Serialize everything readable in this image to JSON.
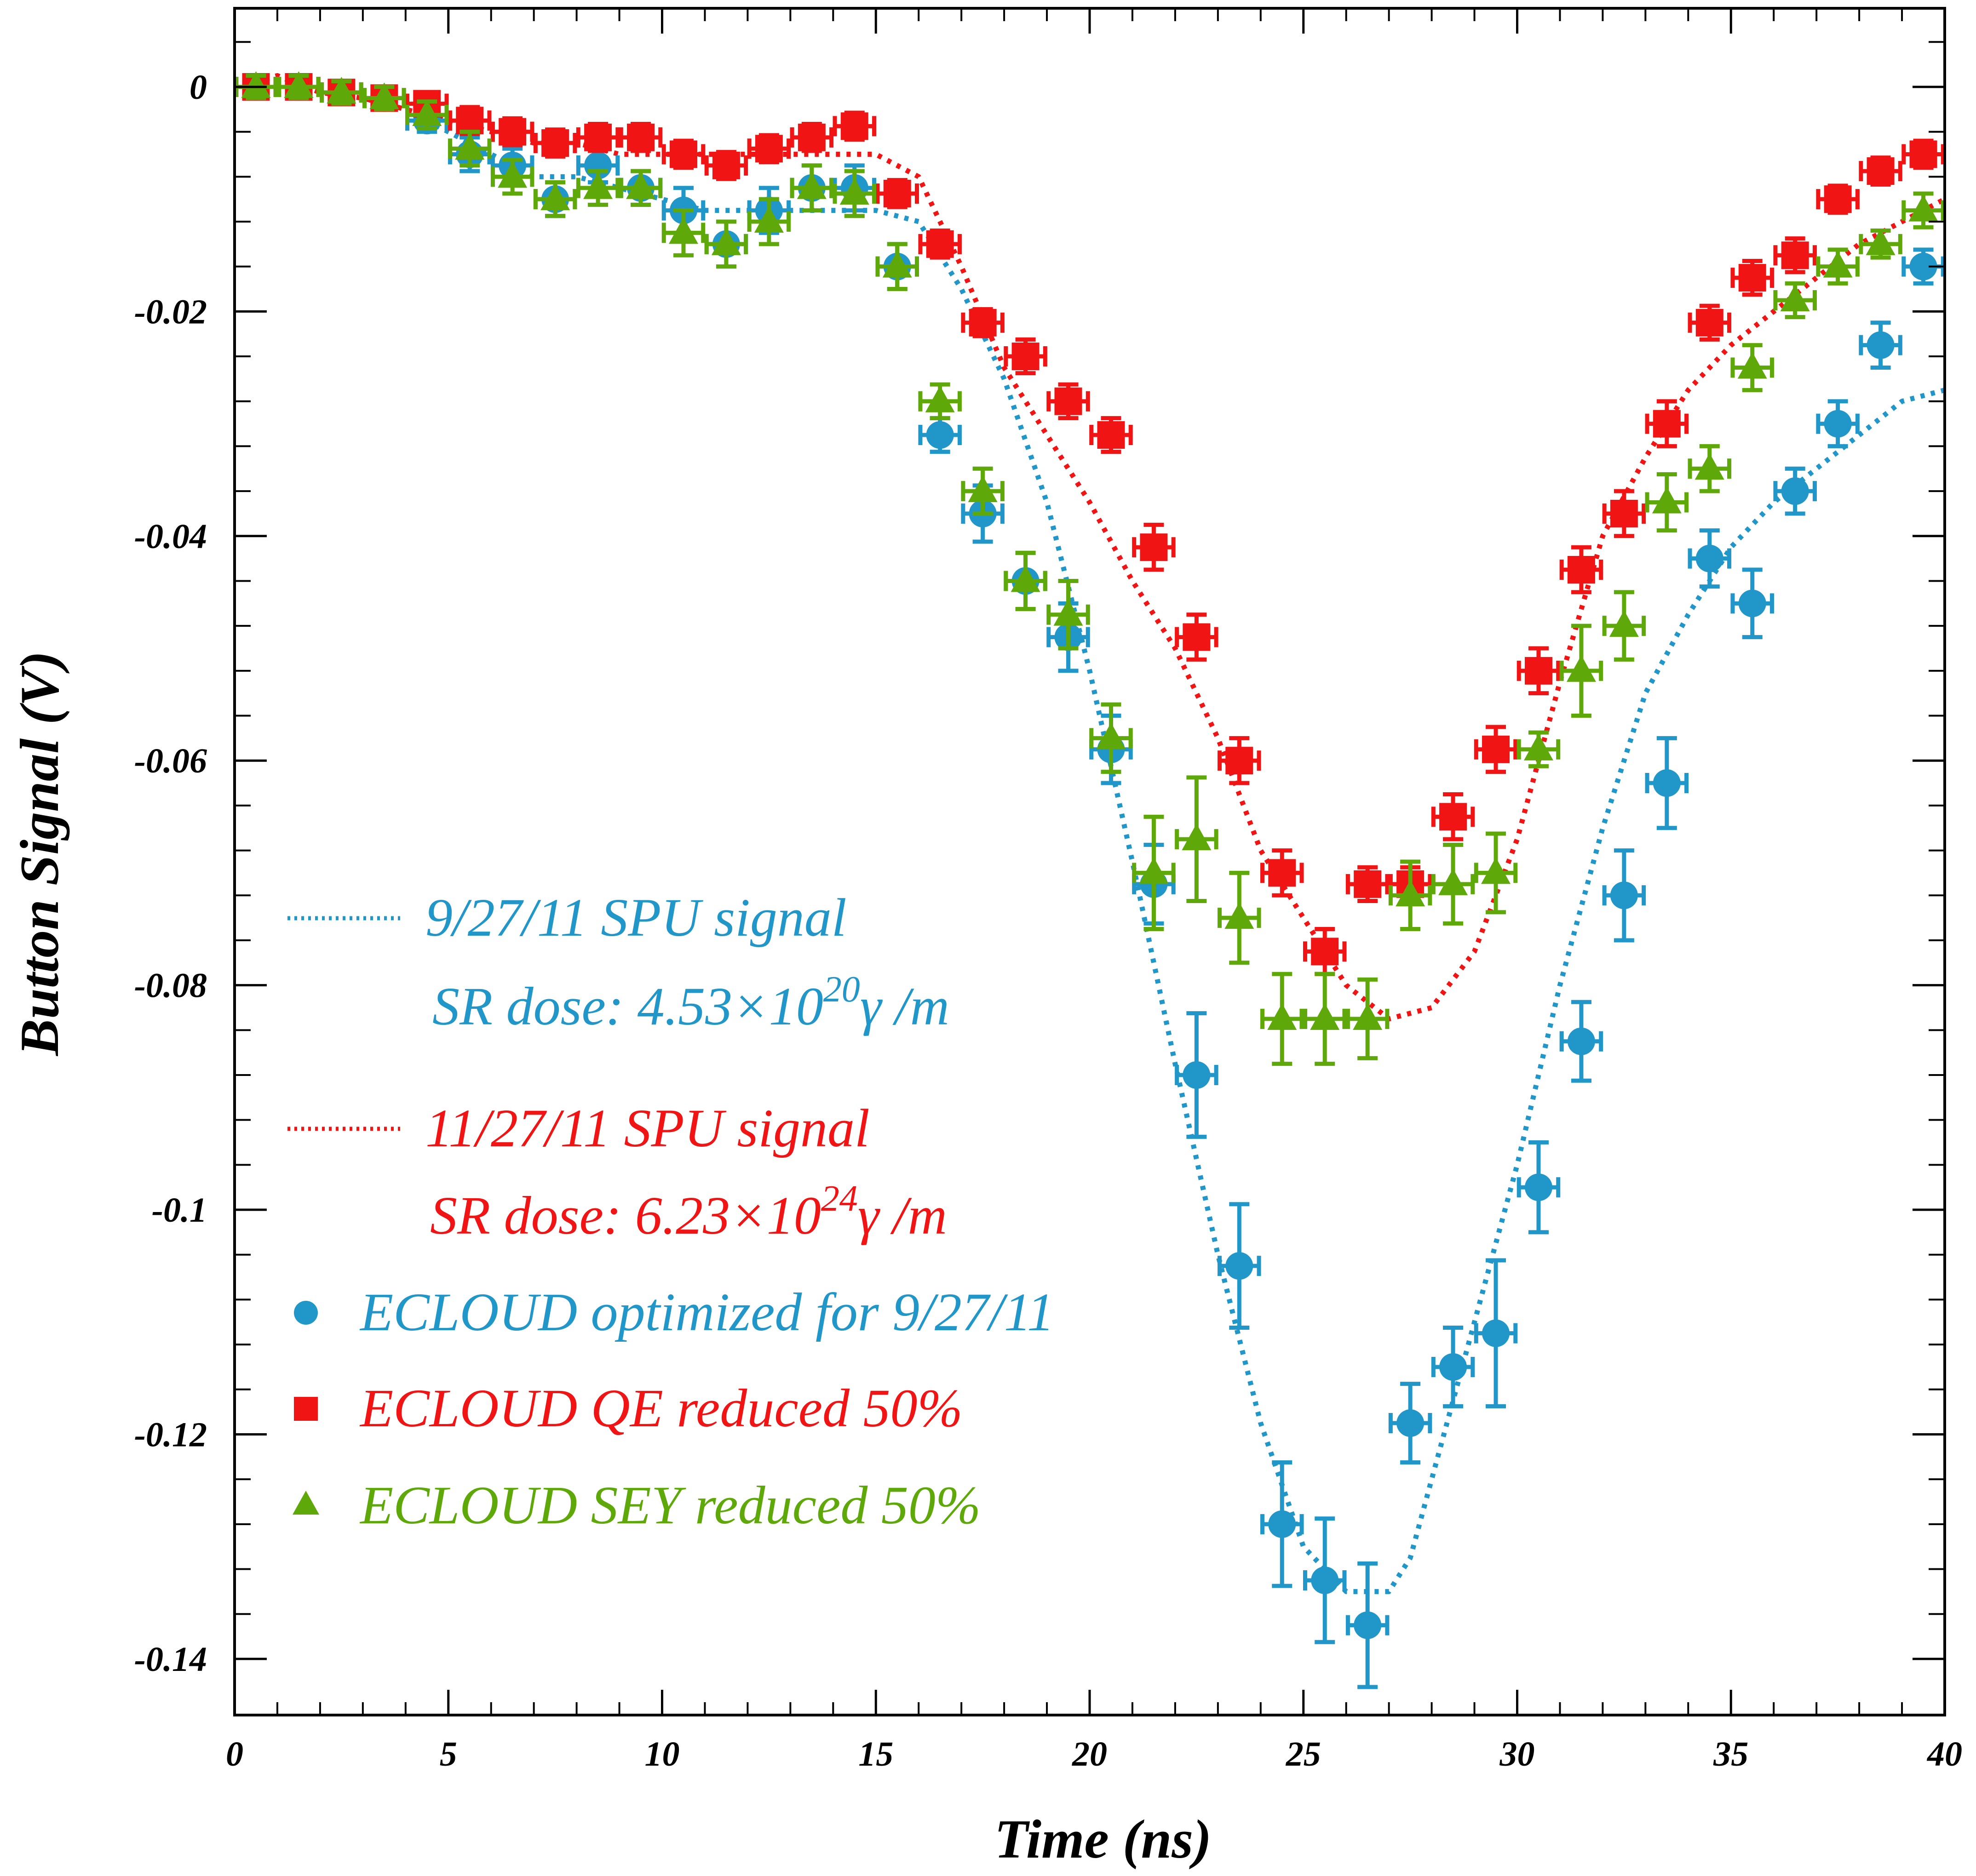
{
  "chart_data": {
    "type": "scatter",
    "title": "",
    "xlabel": "Time (ns)",
    "ylabel": "Button Signal (V)",
    "xlim": [
      0,
      40
    ],
    "ylim": [
      -0.145,
      0.007
    ],
    "xticks": [
      0,
      5,
      10,
      15,
      20,
      25,
      30,
      35,
      40
    ],
    "xtick_labels": [
      "0",
      "5",
      "10",
      "15",
      "20",
      "25",
      "30",
      "35",
      "40"
    ],
    "yticks": [
      0,
      -0.02,
      -0.04,
      -0.06,
      -0.08,
      -0.1,
      -0.12,
      -0.14
    ],
    "ytick_labels": [
      "0",
      "-0.02",
      "-0.04",
      "-0.06",
      "-0.08",
      "-0.1",
      "-0.12",
      "-0.14"
    ],
    "grid": false,
    "legend_position": "left",
    "colors": {
      "blue": "#2196c9",
      "red": "#f01414",
      "green": "#5fa80a"
    },
    "legend": {
      "line1": {
        "text": "9/27/11 SPU signal",
        "dose_prefix": "SR dose: 4.53×10",
        "dose_exp": "20",
        "dose_suffix": "γ /m"
      },
      "line2": {
        "text": "11/27/11 SPU signal",
        "dose_prefix": "SR dose: 6.23×10",
        "dose_exp": "24",
        "dose_suffix": "γ /m"
      },
      "markers": [
        {
          "symbol": "circle",
          "text": "ECLOUD optimized for 9/27/11"
        },
        {
          "symbol": "square",
          "text": "ECLOUD QE reduced 50%"
        },
        {
          "symbol": "triangle",
          "text": "ECLOUD SEY reduced 50%"
        }
      ]
    },
    "series": [
      {
        "name": "9/27/11 SPU signal",
        "kind": "dotted-line",
        "color": "#2196c9",
        "x": [
          0,
          1,
          2,
          3,
          4,
          5,
          6,
          7,
          8,
          9,
          10,
          11,
          12,
          13,
          14,
          15,
          16,
          17,
          18,
          19,
          20,
          21,
          22,
          23,
          24,
          25,
          26,
          27,
          27.5,
          28,
          29,
          30,
          31,
          32,
          33,
          34,
          35,
          36,
          37,
          38,
          39,
          40
        ],
        "y": [
          0,
          0.001,
          -0.0005,
          -0.001,
          -0.002,
          -0.004,
          -0.006,
          -0.008,
          -0.008,
          -0.009,
          -0.01,
          -0.011,
          -0.011,
          -0.011,
          -0.011,
          -0.011,
          -0.012,
          -0.018,
          -0.026,
          -0.037,
          -0.052,
          -0.069,
          -0.087,
          -0.104,
          -0.119,
          -0.13,
          -0.134,
          -0.134,
          -0.131,
          -0.124,
          -0.11,
          -0.096,
          -0.08,
          -0.066,
          -0.054,
          -0.047,
          -0.041,
          -0.037,
          -0.034,
          -0.031,
          -0.028,
          -0.027
        ]
      },
      {
        "name": "11/27/11 SPU signal",
        "kind": "dotted-line",
        "color": "#f01414",
        "x": [
          0,
          1,
          2,
          3,
          4,
          5,
          6,
          7,
          8,
          9,
          10,
          11,
          12,
          13,
          14,
          15,
          16,
          17,
          18,
          19,
          20,
          21,
          22,
          23,
          24,
          25,
          26,
          27,
          28,
          29,
          30,
          31,
          32,
          33,
          34,
          35,
          36,
          37,
          38,
          39,
          40
        ],
        "y": [
          0,
          0.001,
          -0.0005,
          -0.001,
          -0.002,
          -0.003,
          -0.004,
          -0.005,
          -0.005,
          -0.006,
          -0.006,
          -0.006,
          -0.006,
          -0.006,
          -0.006,
          -0.006,
          -0.008,
          -0.016,
          -0.025,
          -0.031,
          -0.037,
          -0.044,
          -0.05,
          -0.058,
          -0.068,
          -0.074,
          -0.08,
          -0.083,
          -0.082,
          -0.077,
          -0.067,
          -0.053,
          -0.04,
          -0.033,
          -0.027,
          -0.023,
          -0.02,
          -0.017,
          -0.014,
          -0.012,
          -0.01
        ]
      },
      {
        "name": "ECLOUD optimized for 9/27/11",
        "kind": "points",
        "marker": "circle",
        "color": "#2196c9",
        "x": [
          0.5,
          1.5,
          2.5,
          3.5,
          4.5,
          5.5,
          6.5,
          7.5,
          8.5,
          9.5,
          10.5,
          11.5,
          12.5,
          13.5,
          14.5,
          15.5,
          16.5,
          17.5,
          18.5,
          19.5,
          20.5,
          21.5,
          22.5,
          23.5,
          24.5,
          25.5,
          26.5,
          27.5,
          28.5,
          29.5,
          30.5,
          31.5,
          32.5,
          33.5,
          34.5,
          35.5,
          36.5,
          37.5,
          38.5,
          39.5
        ],
        "y": [
          0,
          0,
          -0.0005,
          -0.001,
          -0.003,
          -0.006,
          -0.007,
          -0.01,
          -0.007,
          -0.009,
          -0.011,
          -0.014,
          -0.011,
          -0.009,
          -0.009,
          -0.016,
          -0.031,
          -0.038,
          -0.044,
          -0.049,
          -0.059,
          -0.071,
          -0.088,
          -0.105,
          -0.128,
          -0.133,
          -0.137,
          -0.119,
          -0.114,
          -0.111,
          -0.098,
          -0.085,
          -0.072,
          -0.062,
          -0.042,
          -0.046,
          -0.036,
          -0.03,
          -0.023,
          -0.016
        ],
        "err": [
          0.001,
          0.001,
          0.001,
          0.001,
          0.001,
          0.0015,
          0.0015,
          0.0015,
          0.0015,
          0.0015,
          0.002,
          0.002,
          0.002,
          0.002,
          0.002,
          0.002,
          0.0015,
          0.0025,
          0.0025,
          0.003,
          0.003,
          0.0035,
          0.0055,
          0.0055,
          0.0055,
          0.0055,
          0.0055,
          0.0035,
          0.0035,
          0.0065,
          0.004,
          0.0035,
          0.004,
          0.004,
          0.0025,
          0.003,
          0.002,
          0.002,
          0.002,
          0.0015
        ]
      },
      {
        "name": "ECLOUD QE reduced 50%",
        "kind": "points",
        "marker": "square",
        "color": "#f01414",
        "x": [
          0.5,
          1.5,
          2.5,
          3.5,
          4.5,
          5.5,
          6.5,
          7.5,
          8.5,
          9.5,
          10.5,
          11.5,
          12.5,
          13.5,
          14.5,
          15.5,
          16.5,
          17.5,
          18.5,
          19.5,
          20.5,
          21.5,
          22.5,
          23.5,
          24.5,
          25.5,
          26.5,
          27.5,
          28.5,
          29.5,
          30.5,
          31.5,
          32.5,
          33.5,
          34.5,
          35.5,
          36.5,
          37.5,
          38.5,
          39.5
        ],
        "y": [
          0,
          0,
          -0.0005,
          -0.001,
          -0.0015,
          -0.003,
          -0.004,
          -0.005,
          -0.0045,
          -0.0045,
          -0.006,
          -0.007,
          -0.0055,
          -0.0045,
          -0.0035,
          -0.0095,
          -0.014,
          -0.021,
          -0.024,
          -0.028,
          -0.031,
          -0.041,
          -0.049,
          -0.06,
          -0.07,
          -0.077,
          -0.071,
          -0.071,
          -0.065,
          -0.059,
          -0.052,
          -0.043,
          -0.038,
          -0.03,
          -0.021,
          -0.017,
          -0.015,
          -0.01,
          -0.0075,
          -0.006
        ],
        "err": [
          0.001,
          0.001,
          0.001,
          0.001,
          0.001,
          0.0012,
          0.0012,
          0.0012,
          0.0012,
          0.0012,
          0.0012,
          0.0012,
          0.0012,
          0.0012,
          0.0012,
          0.0012,
          0.0012,
          0.0012,
          0.0015,
          0.0015,
          0.0015,
          0.002,
          0.002,
          0.002,
          0.002,
          0.002,
          0.0015,
          0.0015,
          0.002,
          0.002,
          0.002,
          0.002,
          0.002,
          0.002,
          0.0015,
          0.0015,
          0.0015,
          0.0012,
          0.0012,
          0.0012
        ]
      },
      {
        "name": "ECLOUD SEY reduced 50%",
        "kind": "points",
        "marker": "triangle",
        "color": "#5fa80a",
        "x": [
          0.5,
          1.5,
          2.5,
          3.5,
          4.5,
          5.5,
          6.5,
          7.5,
          8.5,
          9.5,
          10.5,
          11.5,
          12.5,
          13.5,
          14.5,
          15.5,
          16.5,
          17.5,
          18.5,
          19.5,
          20.5,
          21.5,
          22.5,
          23.5,
          24.5,
          25.5,
          26.5,
          27.5,
          28.5,
          29.5,
          30.5,
          31.5,
          32.5,
          33.5,
          34.5,
          35.5,
          36.5,
          37.5,
          38.5,
          39.5
        ],
        "y": [
          0,
          0,
          -0.0005,
          -0.001,
          -0.0025,
          -0.0055,
          -0.008,
          -0.01,
          -0.009,
          -0.009,
          -0.013,
          -0.014,
          -0.012,
          -0.009,
          -0.0095,
          -0.016,
          -0.028,
          -0.036,
          -0.044,
          -0.047,
          -0.058,
          -0.07,
          -0.067,
          -0.074,
          -0.083,
          -0.083,
          -0.083,
          -0.072,
          -0.071,
          -0.07,
          -0.059,
          -0.052,
          -0.048,
          -0.037,
          -0.034,
          -0.025,
          -0.019,
          -0.016,
          -0.014,
          -0.011
        ],
        "err": [
          0.001,
          0.001,
          0.001,
          0.001,
          0.0012,
          0.0015,
          0.0015,
          0.0015,
          0.0015,
          0.0015,
          0.002,
          0.002,
          0.002,
          0.002,
          0.002,
          0.002,
          0.0015,
          0.002,
          0.0025,
          0.003,
          0.003,
          0.005,
          0.0055,
          0.004,
          0.004,
          0.004,
          0.0035,
          0.003,
          0.0035,
          0.0035,
          0.0015,
          0.004,
          0.003,
          0.0025,
          0.002,
          0.002,
          0.0015,
          0.0015,
          0.0012,
          0.0015
        ]
      }
    ]
  }
}
